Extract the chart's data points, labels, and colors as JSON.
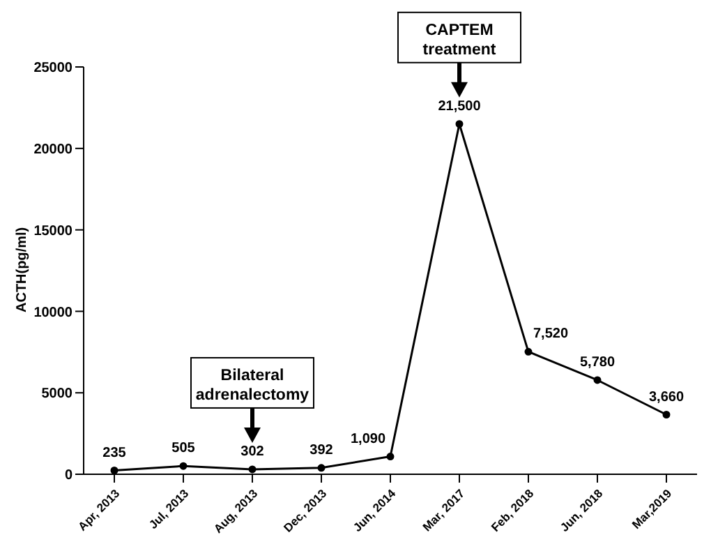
{
  "chart_data": {
    "type": "line",
    "ylabel": "ACTH(pg/ml)",
    "categories": [
      "Apr, 2013",
      "Jul, 2013",
      "Aug, 2013",
      "Dec, 2013",
      "Jun, 2014",
      "Mar, 2017",
      "Feb, 2018",
      "Jun, 2018",
      "Mar,2019"
    ],
    "series": [
      {
        "color": "#000000",
        "values": [
          235,
          505,
          302,
          392,
          1090,
          21500,
          7520,
          5780,
          3660
        ]
      }
    ],
    "value_labels": [
      "235",
      "505",
      "302",
      "392",
      "1,090",
      "21,500",
      "7,520",
      "5,780",
      "3,660"
    ],
    "ylim": [
      0,
      25000
    ],
    "yticks": [
      0,
      5000,
      10000,
      15000,
      20000,
      25000
    ],
    "grid": false,
    "legend": false,
    "marker": "circle",
    "line_style": "solid",
    "annotations": [
      "Bilateral adrenalectomy",
      "CAPTEM treatment"
    ]
  }
}
